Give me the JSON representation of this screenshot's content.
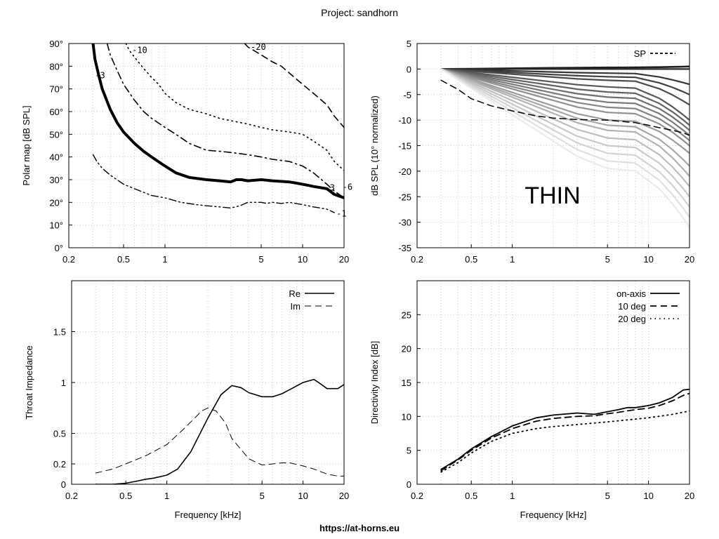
{
  "figure": {
    "title": "Project: sandhorn",
    "footer": "https://at-horns.eu",
    "watermark": "THIN",
    "watermark_color": "#4050c0"
  },
  "chart_data": [
    {
      "id": "polar",
      "type": "line",
      "subtype": "contour",
      "ylabel": "Polar map [dB SPL]",
      "xlabel": "",
      "xscale": "log",
      "xlim": [
        0.2,
        20
      ],
      "ylim": [
        0,
        90
      ],
      "xticks": [
        0.2,
        0.5,
        1,
        5,
        10,
        20
      ],
      "xticklabels": [
        "0.2",
        "0.5",
        "1",
        "5",
        "10",
        "20"
      ],
      "yticks": [
        0,
        10,
        20,
        30,
        40,
        50,
        60,
        70,
        80,
        90
      ],
      "yticklabels": [
        "0°",
        "10°",
        "20°",
        "30°",
        "40°",
        "50°",
        "60°",
        "70°",
        "80°",
        "90°"
      ],
      "grid": true,
      "series": [
        {
          "name": "-1",
          "label": "-1",
          "style": "dashdotdot",
          "width": 1.4,
          "label_pos": "start",
          "x": [
            0.3,
            0.32,
            0.35,
            0.4,
            0.5,
            0.6,
            0.8,
            1.0,
            1.3,
            1.7,
            2.0,
            2.5,
            3.0,
            3.5,
            4.0,
            4.5,
            5.0,
            5.5,
            6.0,
            7.0,
            8.0,
            10.0,
            12.0,
            15.0,
            17.0
          ],
          "y": [
            41,
            38,
            35,
            32,
            28,
            26,
            23,
            22,
            20,
            19,
            18.5,
            18,
            17.5,
            18.5,
            20,
            20,
            20,
            19.5,
            20,
            19.5,
            20,
            19,
            18,
            17,
            15.5
          ]
        },
        {
          "name": "-3",
          "label": "-3",
          "style": "solid",
          "width": 4,
          "label_pos": "end",
          "x": [
            0.3,
            0.31,
            0.33,
            0.35,
            0.4,
            0.45,
            0.5,
            0.6,
            0.7,
            0.8,
            1.0,
            1.2,
            1.5,
            2.0,
            2.5,
            3.0,
            3.3,
            3.6,
            4.0,
            5.0,
            6.0,
            8.0,
            10.0,
            12.0,
            15.0,
            17.0,
            20.0
          ],
          "y": [
            90,
            83,
            76,
            70,
            61,
            55,
            51,
            46,
            42.5,
            40,
            36,
            33,
            31,
            30,
            29.5,
            29,
            30,
            30,
            29.5,
            30,
            29.5,
            29,
            28,
            27,
            26,
            23.5,
            22
          ]
        },
        {
          "name": "-6",
          "label": "-6",
          "style": "dashdot",
          "width": 1.6,
          "label_pos": "start",
          "x": [
            0.38,
            0.4,
            0.45,
            0.5,
            0.6,
            0.7,
            0.8,
            1.0,
            1.2,
            1.5,
            2.0,
            2.5,
            3.0,
            4.0,
            5.0,
            6.0,
            8.0,
            10.0,
            12.0,
            15.0,
            17.0,
            20.0
          ],
          "y": [
            90,
            85,
            78,
            72,
            65,
            60,
            57,
            53,
            50,
            46,
            43,
            42.5,
            42,
            41,
            40,
            39,
            38,
            36,
            33,
            28,
            25,
            22
          ]
        },
        {
          "name": "-10",
          "label": "-10",
          "style": "dotted",
          "width": 1.6,
          "label_pos": "start",
          "x": [
            0.52,
            0.55,
            0.6,
            0.7,
            0.8,
            0.9,
            1.0,
            1.2,
            1.5,
            2.0,
            2.5,
            3.0,
            4.0,
            5.0,
            6.0,
            8.0,
            10.0,
            12.0,
            15.0,
            17.0,
            20.0
          ],
          "y": [
            90,
            87,
            84,
            79,
            75,
            72,
            68,
            64,
            61,
            59,
            57,
            56,
            54.5,
            53,
            52,
            51,
            50,
            47,
            43,
            38,
            34
          ]
        },
        {
          "name": "-20",
          "label": "-20",
          "style": "dashed",
          "width": 1.6,
          "label_pos": "start",
          "x": [
            3.8,
            4.0,
            5.0,
            6.0,
            7.0,
            8.0,
            10.0,
            12.0,
            15.0,
            17.0,
            20.0
          ],
          "y": [
            90,
            88.5,
            85,
            82,
            80,
            77,
            72,
            68,
            63,
            58,
            53
          ]
        }
      ]
    },
    {
      "id": "spl",
      "type": "line",
      "ylabel": "dB SPL (10° normalized)",
      "xlabel": "",
      "xscale": "log",
      "xlim": [
        0.2,
        20
      ],
      "ylim": [
        -35,
        5
      ],
      "xticks": [
        0.2,
        0.5,
        1,
        5,
        10,
        20
      ],
      "xticklabels": [
        "0.2",
        "0.5",
        "1",
        "5",
        "10",
        "20"
      ],
      "yticks": [
        -35,
        -30,
        -25,
        -20,
        -15,
        -10,
        -5,
        0,
        5
      ],
      "yticklabels": [
        "-35",
        "-30",
        "-25",
        "-20",
        "-15",
        "-10",
        "-5",
        "0",
        "5"
      ],
      "grid": true,
      "legend": {
        "label": "SP",
        "placement": "top-right"
      },
      "angles_series": {
        "description": "family of polar responses 0° (dark) to 90° (light)",
        "x": [
          0.3,
          0.5,
          1.0,
          2.0,
          3.0,
          5.0,
          8.0,
          12.0,
          15.0,
          18.0,
          20.0
        ],
        "count": 19,
        "start": 0,
        "end_values": [
          0.5,
          0,
          -3,
          -5,
          -7,
          -10,
          -11,
          -12,
          -13,
          -14,
          -15,
          -16.5,
          -19,
          -21,
          -23,
          -25,
          -27,
          -29,
          -31
        ],
        "mid_values": [
          0.3,
          0,
          -0.8,
          -1.5,
          -2.2,
          -3.5,
          -4.5,
          -5.5,
          -6.5,
          -7.5,
          -8.5,
          -10,
          -11,
          -12,
          -13.5,
          -15,
          -16.5,
          -18,
          -19.5
        ]
      },
      "sp": {
        "name": "SP",
        "style": "dashed",
        "x": [
          0.3,
          0.4,
          0.5,
          0.7,
          1.0,
          1.5,
          2.0,
          3.0,
          5.0,
          8.0,
          10.0,
          12.0,
          15.0,
          18.0,
          20.0
        ],
        "y": [
          -2.2,
          -4,
          -5.8,
          -7.2,
          -8.2,
          -9.2,
          -9.6,
          -9.9,
          -10,
          -10.5,
          -11,
          -11.5,
          -12,
          -12.5,
          -13
        ]
      }
    },
    {
      "id": "impedance",
      "type": "line",
      "ylabel": "Throat Impedance",
      "xlabel": "Frequency [kHz]",
      "xscale": "log",
      "xlim": [
        0.2,
        20
      ],
      "ylim": [
        0,
        2
      ],
      "xticks": [
        0.2,
        0.5,
        1,
        5,
        10,
        20
      ],
      "xticklabels": [
        "0.2",
        "0.5",
        "1",
        "5",
        "10",
        "20"
      ],
      "yticks": [
        0,
        0.2,
        0.5,
        1,
        1.5
      ],
      "yticklabels": [
        "0",
        "0.2",
        "0.5",
        "1",
        "1.5"
      ],
      "grid": true,
      "series": [
        {
          "name": "Re",
          "style": "solid",
          "width": 1.6,
          "x": [
            0.3,
            0.4,
            0.5,
            0.6,
            0.7,
            0.8,
            1.0,
            1.2,
            1.5,
            2.0,
            2.5,
            3.0,
            3.5,
            4.0,
            5.0,
            6.0,
            7.0,
            8.0,
            10.0,
            12.0,
            13.0,
            15.0,
            18.0,
            20.0
          ],
          "y": [
            0.0,
            0.0,
            0.01,
            0.03,
            0.05,
            0.06,
            0.09,
            0.15,
            0.32,
            0.65,
            0.88,
            0.97,
            0.95,
            0.9,
            0.86,
            0.86,
            0.89,
            0.93,
            1.0,
            1.03,
            1.0,
            0.94,
            0.94,
            0.98
          ]
        },
        {
          "name": "Im",
          "style": "dashed",
          "width": 1,
          "x": [
            0.3,
            0.4,
            0.5,
            0.7,
            1.0,
            1.3,
            1.6,
            1.8,
            2.0,
            2.3,
            2.7,
            3.0,
            4.0,
            5.0,
            6.0,
            7.0,
            8.0,
            10.0,
            12.0,
            15.0,
            18.0,
            20.0
          ],
          "y": [
            0.11,
            0.15,
            0.2,
            0.28,
            0.39,
            0.53,
            0.65,
            0.72,
            0.75,
            0.72,
            0.6,
            0.45,
            0.25,
            0.19,
            0.2,
            0.21,
            0.21,
            0.18,
            0.15,
            0.1,
            0.08,
            0.08
          ]
        }
      ]
    },
    {
      "id": "di",
      "type": "line",
      "ylabel": "Directivity Index [dB]",
      "xlabel": "Frequency [kHz]",
      "xscale": "log",
      "xlim": [
        0.2,
        20
      ],
      "ylim": [
        0,
        30
      ],
      "xticks": [
        0.2,
        0.5,
        1,
        5,
        10,
        20
      ],
      "xticklabels": [
        "0.2",
        "0.5",
        "1",
        "5",
        "10",
        "20"
      ],
      "yticks": [
        0,
        5,
        10,
        15,
        20,
        25
      ],
      "yticklabels": [
        "0",
        "5",
        "10",
        "15",
        "20",
        "25"
      ],
      "grid": true,
      "series": [
        {
          "name": "on-axis",
          "style": "solid",
          "width": 1.8,
          "x": [
            0.3,
            0.4,
            0.5,
            0.7,
            1.0,
            1.5,
            2.0,
            3.0,
            4.0,
            5.0,
            6.0,
            7.0,
            8.0,
            10.0,
            12.0,
            15.0,
            18.0,
            20.0
          ],
          "y": [
            2.2,
            3.7,
            5.2,
            7.0,
            8.6,
            9.8,
            10.2,
            10.5,
            10.3,
            10.7,
            11.0,
            11.3,
            11.3,
            11.6,
            12.0,
            12.8,
            13.9,
            14.0
          ]
        },
        {
          "name": "10 deg",
          "style": "dashed",
          "width": 1.8,
          "x": [
            0.3,
            0.4,
            0.5,
            0.7,
            1.0,
            1.5,
            2.0,
            3.0,
            4.0,
            5.0,
            6.0,
            8.0,
            10.0,
            12.0,
            15.0,
            18.0,
            20.0
          ],
          "y": [
            2.0,
            3.6,
            5.0,
            6.8,
            8.2,
            9.3,
            9.7,
            10.0,
            10.1,
            10.4,
            10.6,
            11.0,
            11.2,
            11.6,
            12.3,
            13.1,
            13.4
          ]
        },
        {
          "name": "20 deg",
          "style": "dotted",
          "width": 1.8,
          "x": [
            0.3,
            0.4,
            0.5,
            0.7,
            1.0,
            1.5,
            2.0,
            3.0,
            5.0,
            8.0,
            10.0,
            15.0,
            20.0
          ],
          "y": [
            1.8,
            3.2,
            4.6,
            6.3,
            7.5,
            8.2,
            8.5,
            8.8,
            9.2,
            9.6,
            9.8,
            10.3,
            10.8
          ]
        }
      ]
    }
  ]
}
